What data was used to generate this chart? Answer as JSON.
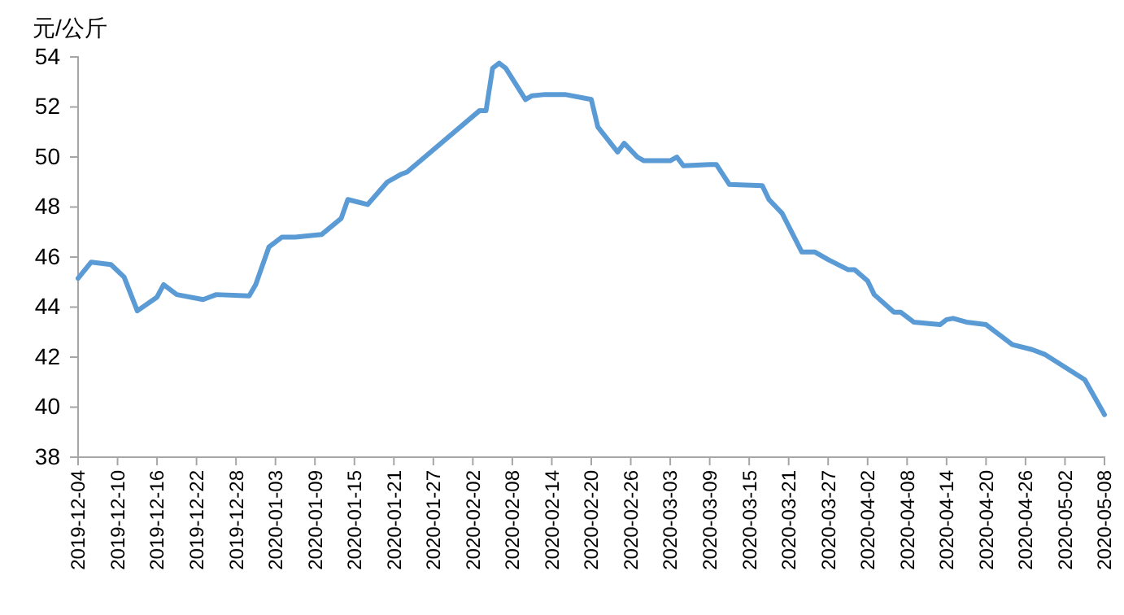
{
  "chart_data": {
    "type": "line",
    "ylabel": "元/公斤",
    "x": [
      "2019-12-04",
      "2019-12-06",
      "2019-12-09",
      "2019-12-11",
      "2019-12-13",
      "2019-12-16",
      "2019-12-17",
      "2019-12-19",
      "2019-12-23",
      "2019-12-25",
      "2019-12-30",
      "2019-12-31",
      "2020-01-02",
      "2020-01-04",
      "2020-01-06",
      "2020-01-10",
      "2020-01-13",
      "2020-01-14",
      "2020-01-17",
      "2020-01-20",
      "2020-01-22",
      "2020-01-23",
      "2020-02-03",
      "2020-02-04",
      "2020-02-05",
      "2020-02-06",
      "2020-02-07",
      "2020-02-10",
      "2020-02-11",
      "2020-02-13",
      "2020-02-16",
      "2020-02-20",
      "2020-02-21",
      "2020-02-24",
      "2020-02-25",
      "2020-02-27",
      "2020-02-28",
      "2020-03-03",
      "2020-03-04",
      "2020-03-05",
      "2020-03-09",
      "2020-03-10",
      "2020-03-12",
      "2020-03-17",
      "2020-03-18",
      "2020-03-20",
      "2020-03-23",
      "2020-03-25",
      "2020-03-27",
      "2020-03-30",
      "2020-03-31",
      "2020-04-02",
      "2020-04-03",
      "2020-04-06",
      "2020-04-07",
      "2020-04-09",
      "2020-04-13",
      "2020-04-14",
      "2020-04-15",
      "2020-04-17",
      "2020-04-20",
      "2020-04-24",
      "2020-04-27",
      "2020-04-29",
      "2020-05-05",
      "2020-05-08"
    ],
    "series": [
      {
        "color": "#5b9bd5",
        "values": [
          45.15,
          45.8,
          45.7,
          45.2,
          43.85,
          44.4,
          44.9,
          44.5,
          44.3,
          44.5,
          44.45,
          44.9,
          46.4,
          46.8,
          46.8,
          46.9,
          47.55,
          48.3,
          48.1,
          49.0,
          49.3,
          49.4,
          51.85,
          51.85,
          53.55,
          53.75,
          53.55,
          52.3,
          52.45,
          52.5,
          52.5,
          52.3,
          51.2,
          50.2,
          50.55,
          50.0,
          49.85,
          49.85,
          50.0,
          49.65,
          49.7,
          49.7,
          48.9,
          48.85,
          48.3,
          47.75,
          46.2,
          46.2,
          45.9,
          45.5,
          45.5,
          45.05,
          44.5,
          43.8,
          43.8,
          43.4,
          43.3,
          43.5,
          43.55,
          43.4,
          43.3,
          42.5,
          42.3,
          42.1,
          41.1,
          39.7
        ]
      }
    ],
    "xlim": [
      "2019-12-04",
      "2020-05-08"
    ],
    "xticks": [
      "2019-12-04",
      "2019-12-10",
      "2019-12-16",
      "2019-12-22",
      "2019-12-28",
      "2020-01-03",
      "2020-01-09",
      "2020-01-15",
      "2020-01-21",
      "2020-01-27",
      "2020-02-02",
      "2020-02-08",
      "2020-02-14",
      "2020-02-20",
      "2020-02-26",
      "2020-03-03",
      "2020-03-09",
      "2020-03-15",
      "2020-03-21",
      "2020-03-27",
      "2020-04-02",
      "2020-04-08",
      "2020-04-14",
      "2020-04-20",
      "2020-04-26",
      "2020-05-02",
      "2020-05-08"
    ],
    "ylim": [
      38,
      54
    ],
    "yticks": [
      38,
      40,
      42,
      44,
      46,
      48,
      50,
      52,
      54
    ],
    "grid": false,
    "marker": "none",
    "line_style": "solid"
  }
}
